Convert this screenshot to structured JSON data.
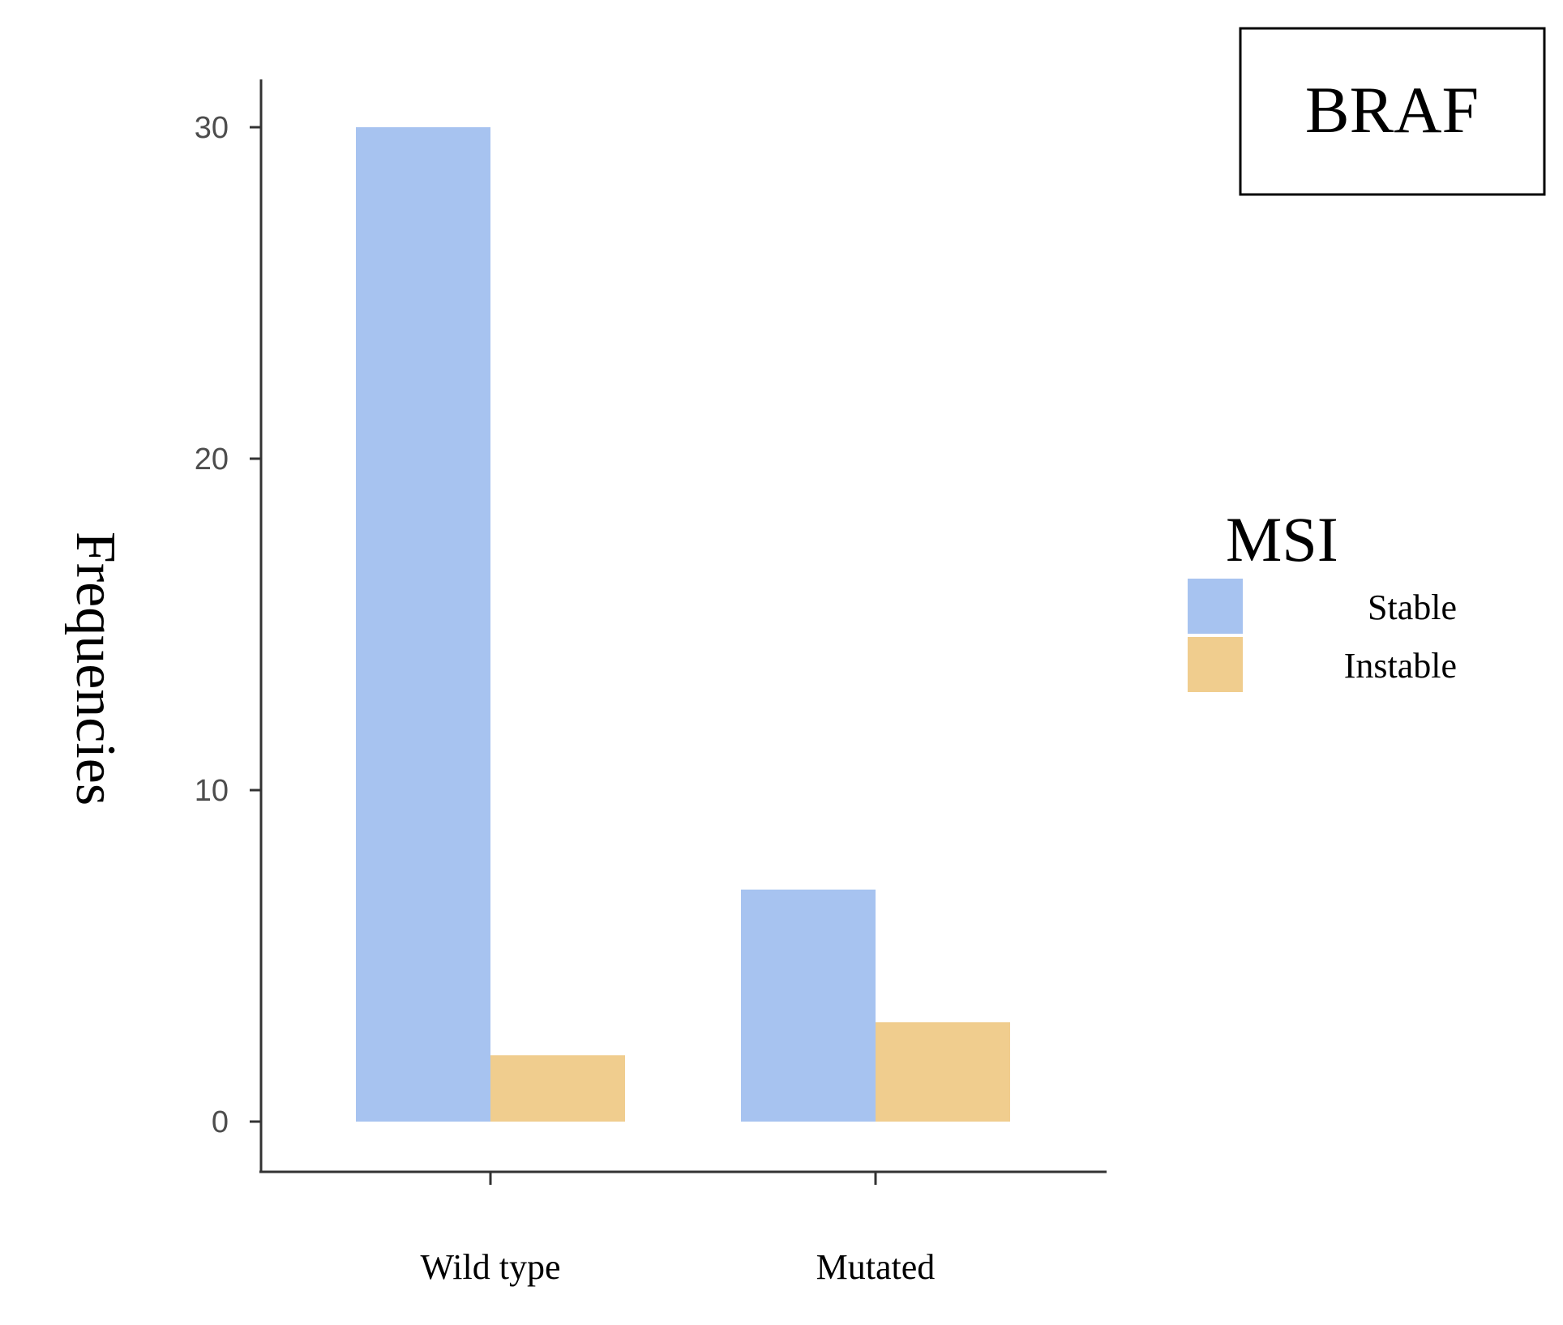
{
  "chart_data": {
    "type": "bar",
    "title": "BRAF",
    "xlabel": "",
    "ylabel": "Frequencies",
    "categories": [
      "Wild type",
      "Mutated"
    ],
    "series": [
      {
        "name": "Stable",
        "values": [
          30,
          7
        ],
        "color": "#a7c3f0"
      },
      {
        "name": "Instable",
        "values": [
          2,
          3
        ],
        "color": "#f0cd8e"
      }
    ],
    "yticks": [
      0,
      10,
      20,
      30
    ],
    "ylim": [
      0,
      31.5
    ],
    "legend": {
      "title": "MSI",
      "placement": "right"
    },
    "grid": false
  }
}
